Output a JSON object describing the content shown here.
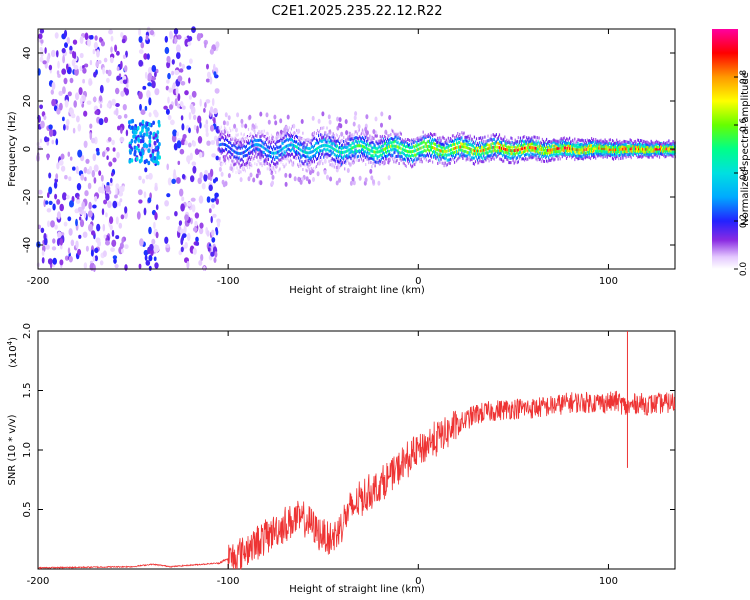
{
  "title": "C2E1.2025.235.22.12.R22",
  "chart_data": [
    {
      "type": "heatmap",
      "xlabel": "Height of straight line (km)",
      "ylabel": "Frequency (Hz)",
      "xlim": [
        -200,
        135
      ],
      "ylim": [
        -50,
        50
      ],
      "x_ticks": [
        -200,
        -100,
        0,
        100
      ],
      "y_ticks": [
        -40,
        -20,
        0,
        20,
        40
      ],
      "colorbar": {
        "label": "Normalized spectral amplitude",
        "range": [
          0,
          1
        ],
        "ticks": [
          0.0,
          0.2,
          0.4,
          0.6,
          0.8
        ],
        "tick_labels": [
          "0.0",
          "0.2",
          "0.4",
          "0.6",
          "0.8"
        ]
      },
      "description_points": {
        "noise_bands_x": [
          [
            -200,
            -153
          ],
          [
            -147,
            -137
          ],
          [
            -133,
            -105
          ]
        ],
        "signal_start_x": -105,
        "signal_center_freq": 0,
        "signal_halfwidth_hz_start": 8,
        "signal_halfwidth_hz_end": 3,
        "peak_amplitude": 0.95
      }
    },
    {
      "type": "line",
      "xlabel": "Height of straight line (km)",
      "ylabel": "SNR (10 * v/v)",
      "y_scale_label": "(x10^4)",
      "y_scale_base": "(x10",
      "y_scale_exp": "4",
      "xlim": [
        -200,
        135
      ],
      "ylim": [
        0,
        2.0
      ],
      "x_ticks": [
        -200,
        -100,
        0,
        100
      ],
      "y_ticks": [
        0.5,
        1.0,
        1.5,
        2.0
      ],
      "y_tick_labels": [
        "0.5",
        "1.0",
        "1.5",
        "2.0"
      ],
      "color": "#ee3333",
      "series": [
        {
          "name": "SNR",
          "x": [
            -200,
            -150,
            -140,
            -130,
            -105,
            -95,
            -85,
            -75,
            -65,
            -58,
            -52,
            -45,
            -38,
            -30,
            -20,
            -10,
            0,
            10,
            20,
            30,
            40,
            50,
            60,
            70,
            80,
            90,
            100,
            105,
            110,
            115,
            120,
            135
          ],
          "y": [
            0.01,
            0.02,
            0.04,
            0.02,
            0.05,
            0.12,
            0.22,
            0.33,
            0.42,
            0.4,
            0.3,
            0.25,
            0.45,
            0.6,
            0.7,
            0.85,
            1.0,
            1.1,
            1.2,
            1.3,
            1.33,
            1.35,
            1.35,
            1.37,
            1.4,
            1.4,
            1.4,
            1.41,
            1.35,
            1.4,
            1.38,
            1.4
          ]
        }
      ],
      "spikes": [
        {
          "x": 110,
          "y_max": 2.0,
          "y_min": 0.85
        }
      ]
    }
  ]
}
